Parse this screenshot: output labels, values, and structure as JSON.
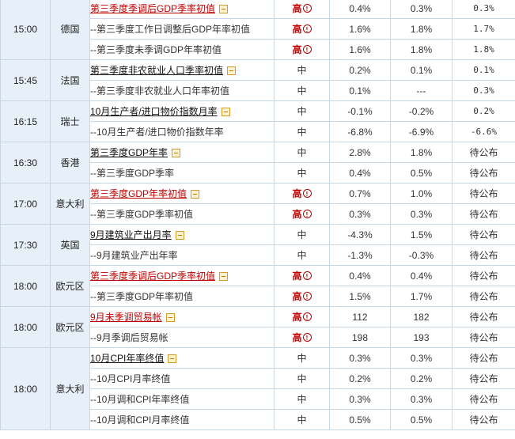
{
  "groups": [
    {
      "time": "15:00",
      "country": "德国",
      "rows": [
        {
          "event": "第三季度季调后GDP季率初值",
          "style": "red",
          "toggle": true,
          "importance": "高",
          "imp_level": "high",
          "v1": "0.4%",
          "v2": "0.3%",
          "v3": "0.3%"
        },
        {
          "event": "--第三季度工作日调整后GDP年率初值",
          "style": "sub",
          "toggle": false,
          "importance": "高",
          "imp_level": "high",
          "v1": "1.6%",
          "v2": "1.8%",
          "v3": "1.7%"
        },
        {
          "event": "--第三季度未季调GDP年率初值",
          "style": "sub",
          "toggle": false,
          "importance": "高",
          "imp_level": "high",
          "v1": "1.6%",
          "v2": "1.8%",
          "v3": "1.8%"
        }
      ]
    },
    {
      "time": "15:45",
      "country": "法国",
      "rows": [
        {
          "event": "第三季度非农就业人口季率初值",
          "style": "black",
          "toggle": true,
          "importance": "中",
          "imp_level": "mid",
          "v1": "0.2%",
          "v2": "0.1%",
          "v3": "0.1%"
        },
        {
          "event": "--第三季度非农就业人口年率初值",
          "style": "sub",
          "toggle": false,
          "importance": "中",
          "imp_level": "mid",
          "v1": "0.1%",
          "v2": "---",
          "v3": "0.3%"
        }
      ]
    },
    {
      "time": "16:15",
      "country": "瑞士",
      "rows": [
        {
          "event": "10月生产者/进口物价指数月率",
          "style": "black",
          "toggle": true,
          "importance": "中",
          "imp_level": "mid",
          "v1": "-0.1%",
          "v2": "-0.2%",
          "v3": "0.2%"
        },
        {
          "event": "--10月生产者/进口物价指数年率",
          "style": "sub",
          "toggle": false,
          "importance": "中",
          "imp_level": "mid",
          "v1": "-6.8%",
          "v2": "-6.9%",
          "v3": "-6.6%"
        }
      ]
    },
    {
      "time": "16:30",
      "country": "香港",
      "rows": [
        {
          "event": "第三季度GDP年率",
          "style": "black",
          "toggle": true,
          "importance": "中",
          "imp_level": "mid",
          "v1": "2.8%",
          "v2": "1.8%",
          "v3": "待公布"
        },
        {
          "event": "--第三季度GDP季率",
          "style": "sub",
          "toggle": false,
          "importance": "中",
          "imp_level": "mid",
          "v1": "0.4%",
          "v2": "0.5%",
          "v3": "待公布"
        }
      ]
    },
    {
      "time": "17:00",
      "country": "意大利",
      "rows": [
        {
          "event": "第三季度GDP年率初值",
          "style": "red",
          "toggle": true,
          "importance": "高",
          "imp_level": "high",
          "v1": "0.7%",
          "v2": "1.0%",
          "v3": "待公布"
        },
        {
          "event": "--第三季度GDP季率初值",
          "style": "sub",
          "toggle": false,
          "importance": "高",
          "imp_level": "high",
          "v1": "0.3%",
          "v2": "0.3%",
          "v3": "待公布"
        }
      ]
    },
    {
      "time": "17:30",
      "country": "英国",
      "rows": [
        {
          "event": "9月建筑业产出月率",
          "style": "black",
          "toggle": true,
          "importance": "中",
          "imp_level": "mid",
          "v1": "-4.3%",
          "v2": "1.5%",
          "v3": "待公布"
        },
        {
          "event": "--9月建筑业产出年率",
          "style": "sub",
          "toggle": false,
          "importance": "中",
          "imp_level": "mid",
          "v1": "-1.3%",
          "v2": "-0.3%",
          "v3": "待公布"
        }
      ]
    },
    {
      "time": "18:00",
      "country": "欧元区",
      "rows": [
        {
          "event": "第三季度季调后GDP季率初值",
          "style": "red",
          "toggle": true,
          "importance": "高",
          "imp_level": "high",
          "v1": "0.4%",
          "v2": "0.4%",
          "v3": "待公布"
        },
        {
          "event": "--第三季度GDP年率初值",
          "style": "sub",
          "toggle": false,
          "importance": "高",
          "imp_level": "high",
          "v1": "1.5%",
          "v2": "1.7%",
          "v3": "待公布"
        }
      ]
    },
    {
      "time": "18:00",
      "country": "欧元区",
      "rows": [
        {
          "event": "9月未季调贸易帐",
          "style": "red",
          "toggle": true,
          "importance": "高",
          "imp_level": "high",
          "v1": "112",
          "v2": "182",
          "v3": "待公布"
        },
        {
          "event": "--9月季调后贸易帐",
          "style": "sub",
          "toggle": false,
          "importance": "高",
          "imp_level": "high",
          "v1": "198",
          "v2": "193",
          "v3": "待公布"
        }
      ]
    },
    {
      "time": "18:00",
      "country": "意大利",
      "rows": [
        {
          "event": "10月CPI年率终值",
          "style": "black",
          "toggle": true,
          "importance": "中",
          "imp_level": "mid",
          "v1": "0.3%",
          "v2": "0.3%",
          "v3": "待公布"
        },
        {
          "event": "--10月CPI月率终值",
          "style": "sub",
          "toggle": false,
          "importance": "中",
          "imp_level": "mid",
          "v1": "0.2%",
          "v2": "0.2%",
          "v3": "待公布"
        },
        {
          "event": "--10月调和CPI年率终值",
          "style": "sub",
          "toggle": false,
          "importance": "中",
          "imp_level": "mid",
          "v1": "0.3%",
          "v2": "0.3%",
          "v3": "待公布"
        },
        {
          "event": "--10月调和CPI月率终值",
          "style": "sub",
          "toggle": false,
          "importance": "中",
          "imp_level": "mid",
          "v1": "0.5%",
          "v2": "0.5%",
          "v3": "待公布"
        }
      ]
    }
  ]
}
